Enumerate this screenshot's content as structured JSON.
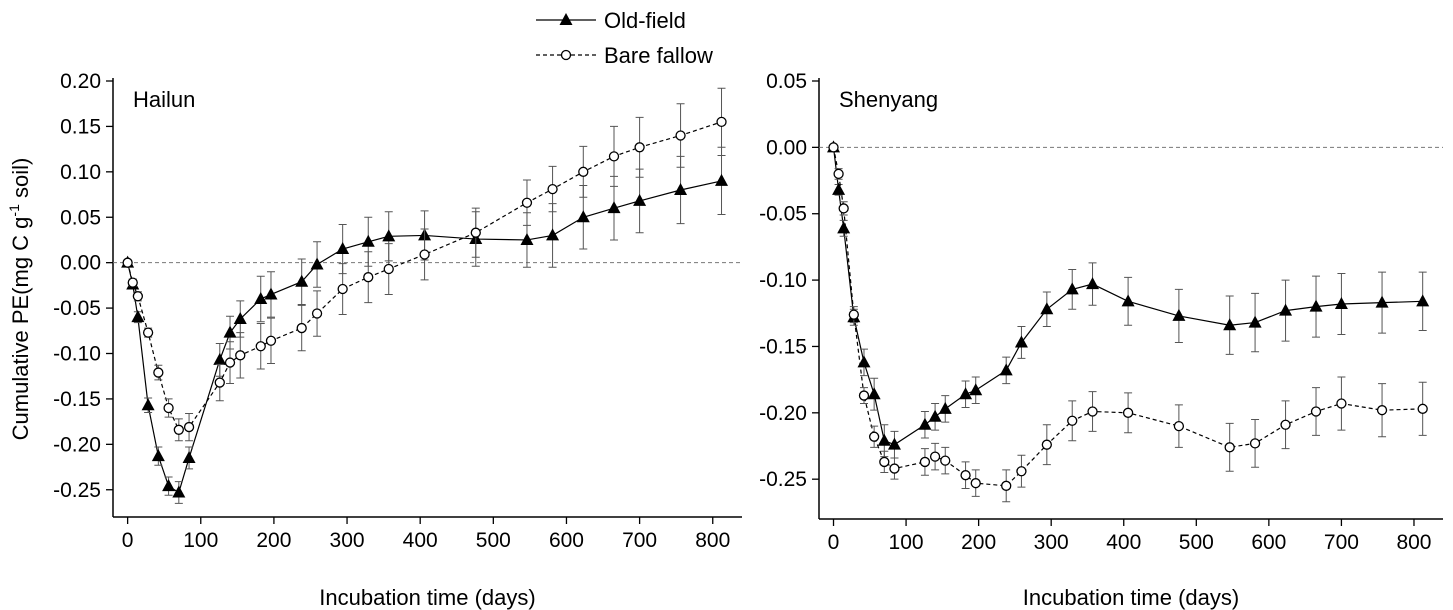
{
  "chart_data": [
    {
      "type": "line",
      "title": "Hailun",
      "xlabel": "Incubation time (days)",
      "ylabel": {
        "text": "Cumulative PE(mg C g",
        "sup": "-1",
        "after": " soil)"
      },
      "legend": "above",
      "zero_line": true,
      "x": [
        0,
        7,
        14,
        28,
        42,
        56,
        70,
        84,
        126,
        140,
        154,
        182,
        196,
        238,
        259,
        294,
        329,
        357,
        406,
        476,
        546,
        581,
        623,
        665,
        700,
        756,
        812
      ],
      "xlim": [
        -20,
        840
      ],
      "xticks": [
        0,
        100,
        200,
        300,
        400,
        500,
        600,
        700,
        800
      ],
      "ylim": [
        -0.28,
        0.2
      ],
      "yticks": [
        {
          "value": 0.2,
          "label": "0.20"
        },
        0.15,
        {
          "value": 0.1,
          "label": "0.10"
        },
        0.05,
        {
          "value": 0,
          "label": "0.00"
        },
        -0.05,
        {
          "value": -0.1,
          "label": "-0.10"
        },
        -0.15,
        {
          "value": -0.2,
          "label": "-0.20"
        },
        -0.25
      ],
      "series": [
        {
          "name": "Old-field",
          "color": "#000000",
          "marker": "triangle",
          "dashed": false,
          "values": [
            0,
            -0.024,
            -0.06,
            -0.157,
            -0.213,
            -0.246,
            -0.253,
            -0.215,
            -0.107,
            -0.077,
            -0.062,
            -0.04,
            -0.035,
            -0.021,
            -0.002,
            0.015,
            0.023,
            0.029,
            0.03,
            0.026,
            0.025,
            0.03,
            0.05,
            0.06,
            0.068,
            0.08,
            0.09
          ],
          "errors": [
            0,
            0.004,
            0.006,
            0.008,
            0.01,
            0.01,
            0.012,
            0.012,
            0.018,
            0.018,
            0.02,
            0.025,
            0.025,
            0.025,
            0.025,
            0.027,
            0.027,
            0.027,
            0.027,
            0.03,
            0.03,
            0.035,
            0.035,
            0.035,
            0.035,
            0.037,
            0.037
          ]
        },
        {
          "name": "Bare fallow",
          "color": "#000000",
          "marker": "circle",
          "dashed": true,
          "values": [
            0,
            -0.022,
            -0.037,
            -0.077,
            -0.121,
            -0.16,
            -0.184,
            -0.181,
            -0.132,
            -0.11,
            -0.102,
            -0.092,
            -0.086,
            -0.072,
            -0.056,
            -0.029,
            -0.016,
            -0.007,
            0.009,
            0.033,
            0.066,
            0.081,
            0.1,
            0.117,
            0.127,
            0.14,
            0.155
          ],
          "errors": [
            0,
            0.004,
            0.005,
            0.005,
            0.008,
            0.01,
            0.012,
            0.015,
            0.02,
            0.023,
            0.025,
            0.025,
            0.025,
            0.025,
            0.025,
            0.028,
            0.028,
            0.028,
            0.028,
            0.027,
            0.025,
            0.025,
            0.028,
            0.033,
            0.033,
            0.035,
            0.037
          ]
        }
      ]
    },
    {
      "type": "line",
      "title": "Shenyang",
      "xlabel": "Incubation time (days)",
      "zero_line": true,
      "x": [
        0,
        7,
        14,
        28,
        42,
        56,
        70,
        84,
        126,
        140,
        154,
        182,
        196,
        238,
        259,
        294,
        329,
        357,
        406,
        476,
        546,
        581,
        623,
        665,
        700,
        756,
        812
      ],
      "xlim": [
        -20,
        840
      ],
      "xticks": [
        0,
        100,
        200,
        300,
        400,
        500,
        600,
        700,
        800
      ],
      "ylim": [
        -0.28,
        0.05
      ],
      "yticks": [
        0.05,
        {
          "value": 0,
          "label": "0.00"
        },
        -0.05,
        {
          "value": -0.1,
          "label": "-0.10"
        },
        -0.15,
        {
          "value": -0.2,
          "label": "-0.20"
        },
        -0.25
      ],
      "series": [
        {
          "color": "#000000",
          "marker": "triangle",
          "dashed": false,
          "values": [
            0,
            -0.032,
            -0.061,
            -0.128,
            -0.162,
            -0.186,
            -0.221,
            -0.224,
            -0.209,
            -0.203,
            -0.197,
            -0.186,
            -0.183,
            -0.168,
            -0.147,
            -0.122,
            -0.107,
            -0.103,
            -0.116,
            -0.127,
            -0.134,
            -0.132,
            -0.123,
            -0.12,
            -0.118,
            -0.117,
            -0.116
          ],
          "errors": [
            0,
            0.004,
            0.006,
            0.006,
            0.01,
            0.012,
            0.012,
            0.01,
            0.01,
            0.01,
            0.01,
            0.01,
            0.01,
            0.01,
            0.012,
            0.013,
            0.015,
            0.016,
            0.018,
            0.02,
            0.022,
            0.022,
            0.023,
            0.023,
            0.023,
            0.023,
            0.022
          ]
        },
        {
          "color": "#000000",
          "marker": "circle",
          "dashed": true,
          "values": [
            0,
            -0.02,
            -0.046,
            -0.126,
            -0.187,
            -0.218,
            -0.237,
            -0.242,
            -0.237,
            -0.233,
            -0.236,
            -0.247,
            -0.253,
            -0.255,
            -0.244,
            -0.224,
            -0.206,
            -0.199,
            -0.2,
            -0.21,
            -0.226,
            -0.223,
            -0.209,
            -0.199,
            -0.193,
            -0.198,
            -0.197
          ],
          "errors": [
            0,
            0.004,
            0.005,
            0.006,
            0.006,
            0.008,
            0.008,
            0.008,
            0.01,
            0.01,
            0.01,
            0.01,
            0.01,
            0.012,
            0.012,
            0.015,
            0.015,
            0.015,
            0.015,
            0.016,
            0.018,
            0.018,
            0.018,
            0.018,
            0.02,
            0.02,
            0.02
          ]
        }
      ]
    }
  ]
}
